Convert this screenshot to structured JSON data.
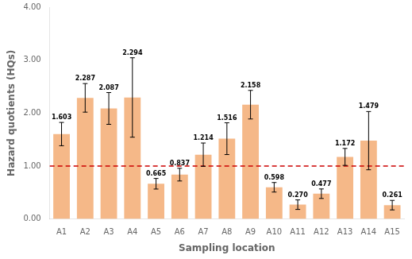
{
  "chart_data": {
    "type": "bar",
    "categories": [
      "A1",
      "A2",
      "A3",
      "A4",
      "A5",
      "A6",
      "A7",
      "A8",
      "A9",
      "A10",
      "A11",
      "A12",
      "A13",
      "A14",
      "A15"
    ],
    "values": [
      1.603,
      2.287,
      2.087,
      2.294,
      0.665,
      0.837,
      1.214,
      1.516,
      2.158,
      0.598,
      0.27,
      0.477,
      1.172,
      1.479,
      0.261
    ],
    "value_labels": [
      "1.603",
      "2.287",
      "2.087",
      "2.294",
      "0.665",
      "0.837",
      "1.214",
      "1.516",
      "2.158",
      "0.598",
      "0.270",
      "0.477",
      "1.172",
      "1.479",
      "0.261"
    ],
    "errors": [
      0.22,
      0.27,
      0.3,
      0.75,
      0.1,
      0.12,
      0.22,
      0.3,
      0.27,
      0.09,
      0.09,
      0.09,
      0.16,
      0.55,
      0.09
    ],
    "color": "#F5B888",
    "hline": {
      "y": 1.0,
      "color": "#CC0000",
      "line_style": "dashed"
    },
    "xlabel": "Sampling location",
    "ylabel": "Hazard quotients (HQs)",
    "ylim": [
      0.0,
      4.0
    ],
    "yticks": [
      {
        "value": 0.0,
        "label": "0.00"
      },
      {
        "value": 1.0,
        "label": "1.00"
      },
      {
        "value": 2.0,
        "label": "2.00"
      },
      {
        "value": 3.0,
        "label": "3.00"
      },
      {
        "value": 4.0,
        "label": "4.00"
      }
    ],
    "data_labels": true,
    "grid": false
  }
}
